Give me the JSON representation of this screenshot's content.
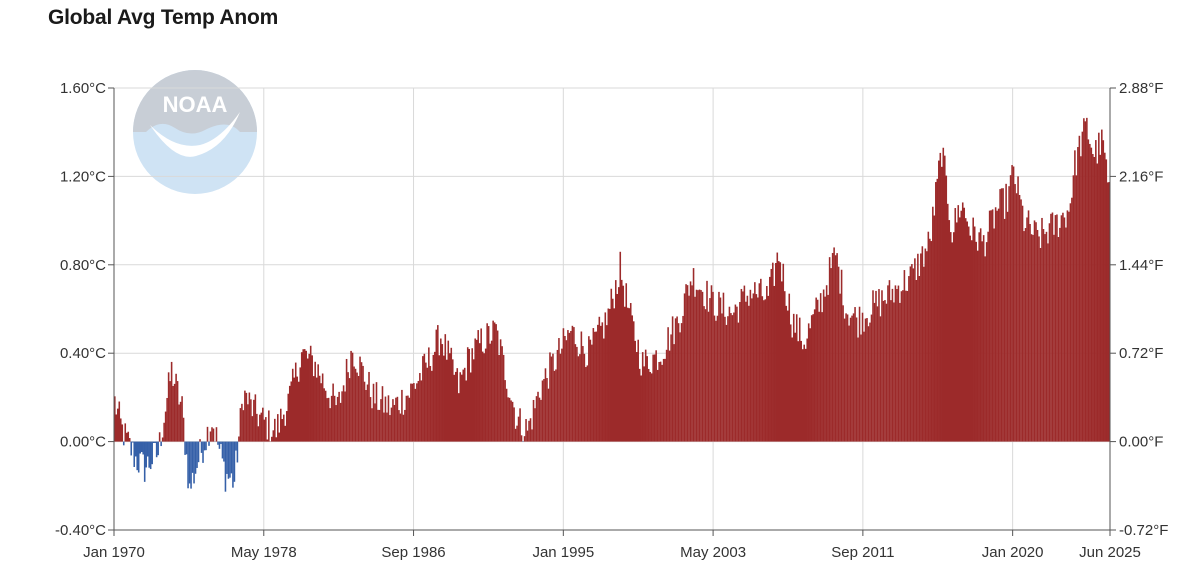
{
  "title": "Global Avg Temp Anom",
  "logo": {
    "text": "NOAA",
    "colors": {
      "top": "#c8ced6",
      "bottom": "#cfe3f4",
      "bird": "#ffffff"
    }
  },
  "colors": {
    "positive": "#9c2a2a",
    "negative": "#3560a8",
    "grid": "#d9d9d9",
    "axis": "#555555",
    "text": "#333333"
  },
  "chart_data": {
    "type": "bar",
    "title": "Global Avg Temp Anom",
    "grid": true,
    "x_range": [
      "Jan 1970",
      "Jun 2025"
    ],
    "x_tick_labels": [
      "Jan 1970",
      "May 1978",
      "Sep 1986",
      "Jan 1995",
      "May 2003",
      "Sep 2011",
      "Jan 2020",
      "Jun 2025"
    ],
    "y_left": {
      "ylim": [
        -0.4,
        1.6
      ],
      "unit": "°C",
      "tick_values": [
        -0.4,
        0.0,
        0.4,
        0.8,
        1.2,
        1.6
      ],
      "tick_labels": [
        "-0.40°C",
        "0.00°C",
        "0.40°C",
        "0.80°C",
        "1.20°C",
        "1.60°C"
      ]
    },
    "y_right": {
      "ylim": [
        -0.72,
        2.88
      ],
      "unit": "°F",
      "tick_values": [
        -0.72,
        0.0,
        0.72,
        1.44,
        2.16,
        2.88
      ],
      "tick_labels": [
        "-0.72°F",
        "0.00°F",
        "0.72°F",
        "1.44°F",
        "2.16°F",
        "2.88°F"
      ]
    },
    "series": [
      {
        "start": "1970-01",
        "frequency": "monthly",
        "anchors_note_free": true,
        "key_points": [
          [
            "1970-01",
            0.18
          ],
          [
            "1970-06",
            0.05
          ],
          [
            "1971-03",
            -0.08
          ],
          [
            "1971-09",
            -0.12
          ],
          [
            "1972-06",
            -0.05
          ],
          [
            "1973-03",
            0.32
          ],
          [
            "1973-10",
            0.15
          ],
          [
            "1974-03",
            -0.22
          ],
          [
            "1974-09",
            -0.08
          ],
          [
            "1975-06",
            0.1
          ],
          [
            "1976-03",
            -0.15
          ],
          [
            "1976-09",
            -0.18
          ],
          [
            "1977-03",
            0.22
          ],
          [
            "1977-09",
            0.15
          ],
          [
            "1978-06",
            0.08
          ],
          [
            "1979-01",
            0.05
          ],
          [
            "1979-10",
            0.2
          ],
          [
            "1980-06",
            0.4
          ],
          [
            "1981-03",
            0.35
          ],
          [
            "1981-10",
            0.25
          ],
          [
            "1982-06",
            0.15
          ],
          [
            "1983-04",
            0.42
          ],
          [
            "1984-06",
            0.2
          ],
          [
            "1985-06",
            0.15
          ],
          [
            "1986-06",
            0.22
          ],
          [
            "1987-06",
            0.35
          ],
          [
            "1988-03",
            0.48
          ],
          [
            "1989-03",
            0.25
          ],
          [
            "1989-10",
            0.38
          ],
          [
            "1990-06",
            0.45
          ],
          [
            "1991-04",
            0.5
          ],
          [
            "1991-09",
            0.35
          ],
          [
            "1992-06",
            0.1
          ],
          [
            "1993-01",
            0.05
          ],
          [
            "1993-10",
            0.25
          ],
          [
            "1994-06",
            0.35
          ],
          [
            "1995-06",
            0.5
          ],
          [
            "1996-06",
            0.4
          ],
          [
            "1997-06",
            0.55
          ],
          [
            "1998-03",
            0.78
          ],
          [
            "1998-10",
            0.55
          ],
          [
            "1999-06",
            0.35
          ],
          [
            "2000-06",
            0.4
          ],
          [
            "2001-06",
            0.55
          ],
          [
            "2002-03",
            0.75
          ],
          [
            "2003-06",
            0.62
          ],
          [
            "2004-06",
            0.58
          ],
          [
            "2005-06",
            0.68
          ],
          [
            "2006-06",
            0.65
          ],
          [
            "2007-01",
            0.85
          ],
          [
            "2007-10",
            0.55
          ],
          [
            "2008-06",
            0.45
          ],
          [
            "2009-06",
            0.65
          ],
          [
            "2010-03",
            0.85
          ],
          [
            "2010-10",
            0.6
          ],
          [
            "2011-06",
            0.55
          ],
          [
            "2012-06",
            0.62
          ],
          [
            "2013-06",
            0.68
          ],
          [
            "2014-06",
            0.75
          ],
          [
            "2015-06",
            0.9
          ],
          [
            "2016-02",
            1.32
          ],
          [
            "2016-09",
            0.95
          ],
          [
            "2017-03",
            1.08
          ],
          [
            "2017-10",
            0.95
          ],
          [
            "2018-06",
            0.9
          ],
          [
            "2019-03",
            1.05
          ],
          [
            "2019-10",
            1.1
          ],
          [
            "2020-02",
            1.22
          ],
          [
            "2020-09",
            1.0
          ],
          [
            "2021-06",
            0.92
          ],
          [
            "2022-06",
            0.98
          ],
          [
            "2023-03",
            1.05
          ],
          [
            "2023-07",
            1.25
          ],
          [
            "2023-12",
            1.38
          ],
          [
            "2024-03",
            1.42
          ],
          [
            "2024-08",
            1.3
          ],
          [
            "2025-01",
            1.35
          ],
          [
            "2025-03",
            1.3
          ],
          [
            "2025-06",
            1.1
          ]
        ]
      }
    ]
  }
}
